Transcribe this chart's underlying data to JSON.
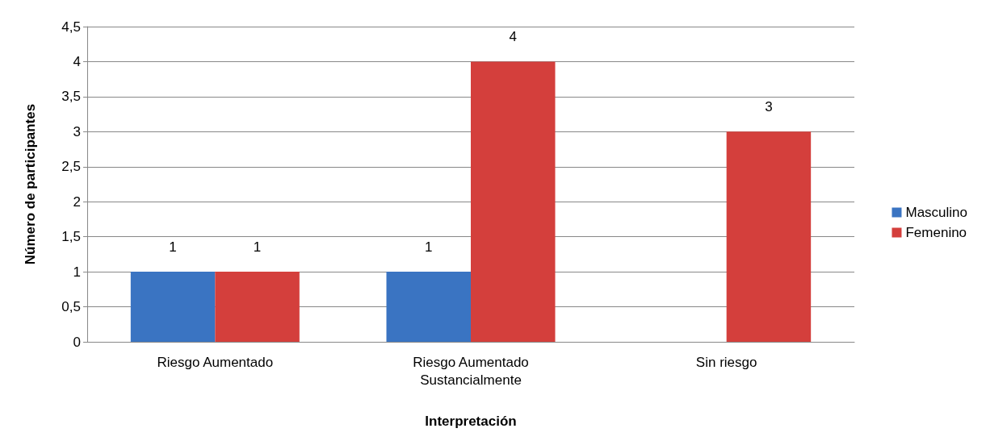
{
  "chart_data": {
    "type": "bar",
    "xlabel": "Interpretación",
    "ylabel": "Número de participantes",
    "categories": [
      "Riesgo Aumentado",
      "Riesgo Aumentado\nSustancialmente",
      "Sin riesgo"
    ],
    "series": [
      {
        "name": "Masculino",
        "color": "#3a74c2",
        "values": [
          1,
          1,
          null
        ]
      },
      {
        "name": "Femenino",
        "color": "#d43f3c",
        "values": [
          1,
          4,
          3
        ]
      }
    ],
    "ylim": [
      0,
      4.5
    ],
    "yticks": [
      0,
      {
        "value": 0.5,
        "label": "0,5"
      },
      1,
      {
        "value": 1.5,
        "label": "1,5"
      },
      2,
      {
        "value": 2.5,
        "label": "2,5"
      },
      3,
      {
        "value": 3.5,
        "label": "3,5"
      },
      4,
      {
        "value": 4.5,
        "label": "4,5"
      }
    ],
    "grid": "y",
    "legend": "right",
    "data_labels": true
  }
}
